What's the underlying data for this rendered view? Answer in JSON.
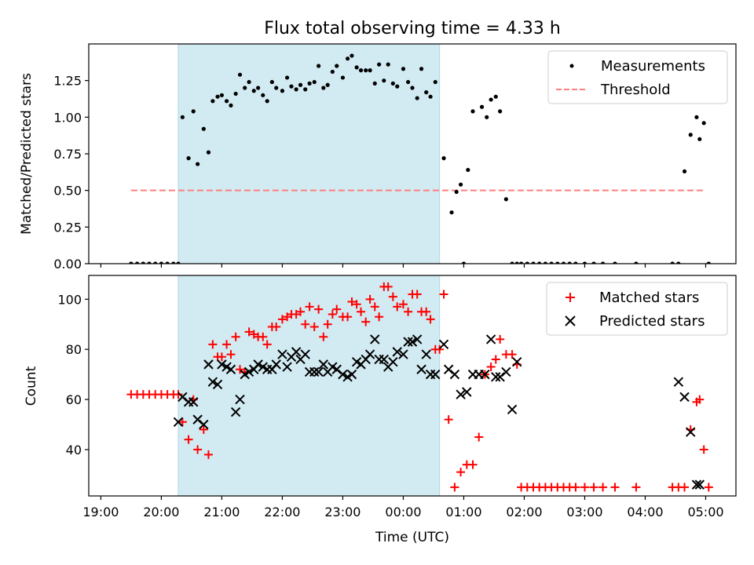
{
  "chart_data": [
    {
      "type": "scatter",
      "title": "Flux total observing time = 4.33 h",
      "xlabel": "",
      "ylabel": "Matched/Predicted stars",
      "xlim": [
        18.8,
        29.5
      ],
      "ylim": [
        0,
        1.5
      ],
      "yticks": [
        0.0,
        0.25,
        0.5,
        0.75,
        1.0,
        1.25
      ],
      "ytick_labels": [
        "0.00",
        "0.25",
        "0.50",
        "0.75",
        "1.00",
        "1.25"
      ],
      "shaded_span": [
        20.28,
        24.6
      ],
      "legend": [
        "Measurements",
        "Threshold"
      ],
      "legend_position": "top-right",
      "threshold": {
        "name": "Threshold",
        "y": 0.5,
        "x_range": [
          19.5,
          29.0
        ],
        "color": "#ff7f7f"
      },
      "series": [
        {
          "name": "Measurements",
          "color": "#000000",
          "x": [
            19.5,
            19.6,
            19.7,
            19.8,
            19.9,
            20.0,
            20.1,
            20.2,
            20.28,
            20.35,
            20.45,
            20.53,
            20.6,
            20.7,
            20.78,
            20.85,
            20.93,
            21.0,
            21.08,
            21.15,
            21.23,
            21.3,
            21.38,
            21.45,
            21.53,
            21.6,
            21.68,
            21.75,
            21.83,
            21.9,
            22.0,
            22.08,
            22.15,
            22.23,
            22.3,
            22.38,
            22.45,
            22.53,
            22.6,
            22.68,
            22.75,
            22.83,
            22.9,
            23.0,
            23.08,
            23.15,
            23.23,
            23.3,
            23.38,
            23.45,
            23.53,
            23.6,
            23.68,
            23.75,
            23.83,
            23.9,
            24.0,
            24.08,
            24.15,
            24.23,
            24.3,
            24.38,
            24.45,
            24.53,
            24.67,
            24.8,
            24.88,
            24.95,
            25.0,
            25.07,
            25.15,
            25.3,
            25.38,
            25.45,
            25.53,
            25.6,
            25.7,
            25.8,
            25.88,
            25.95,
            26.05,
            26.15,
            26.25,
            26.35,
            26.45,
            26.55,
            26.65,
            26.75,
            26.85,
            27.0,
            27.15,
            27.3,
            27.5,
            27.85,
            28.45,
            28.55,
            28.65,
            28.75,
            28.85,
            28.9,
            28.97,
            29.05
          ],
          "y": [
            0.0,
            0.0,
            0.0,
            0.0,
            0.0,
            0.0,
            0.0,
            0.0,
            0.0,
            1.0,
            0.72,
            1.04,
            0.68,
            0.92,
            0.76,
            1.11,
            1.14,
            1.15,
            1.11,
            1.08,
            1.16,
            1.29,
            1.2,
            1.24,
            1.18,
            1.2,
            1.15,
            1.11,
            1.24,
            1.2,
            1.18,
            1.27,
            1.21,
            1.19,
            1.22,
            1.19,
            1.23,
            1.24,
            1.35,
            1.2,
            1.22,
            1.31,
            1.35,
            1.27,
            1.4,
            1.42,
            1.34,
            1.32,
            1.32,
            1.32,
            1.23,
            1.36,
            1.25,
            1.36,
            1.23,
            1.21,
            1.33,
            1.24,
            1.2,
            1.13,
            1.33,
            1.17,
            1.14,
            1.24,
            0.72,
            0.35,
            0.49,
            0.54,
            0.0,
            0.64,
            1.04,
            1.07,
            1.0,
            1.12,
            1.14,
            1.04,
            0.44,
            0.0,
            0.0,
            0.0,
            0.0,
            0.0,
            0.0,
            0.0,
            0.0,
            0.0,
            0.0,
            0.0,
            0.0,
            0.0,
            0.0,
            0.0,
            0.0,
            0.0,
            0.0,
            0.0,
            0.63,
            0.88,
            1.0,
            0.85,
            0.96,
            0.0
          ]
        }
      ]
    },
    {
      "type": "scatter",
      "title": "",
      "xlabel": "Time (UTC)",
      "ylabel": "Count",
      "xlim": [
        18.8,
        29.5
      ],
      "ylim": [
        21.5,
        109.5
      ],
      "yticks": [
        40,
        60,
        80,
        100
      ],
      "ytick_labels": [
        "40",
        "60",
        "80",
        "100"
      ],
      "xticks": [
        19,
        20,
        21,
        22,
        23,
        24,
        25,
        26,
        27,
        28,
        29
      ],
      "xtick_labels": [
        "19:00",
        "20:00",
        "21:00",
        "22:00",
        "23:00",
        "00:00",
        "01:00",
        "02:00",
        "03:00",
        "04:00",
        "05:00"
      ],
      "shaded_span": [
        20.28,
        24.6
      ],
      "legend": [
        "Matched stars",
        "Predicted stars"
      ],
      "legend_position": "top-right",
      "series": [
        {
          "name": "Matched stars",
          "color": "#ff0000",
          "marker": "plus",
          "x": [
            19.5,
            19.6,
            19.7,
            19.8,
            19.9,
            20.0,
            20.1,
            20.2,
            20.28,
            20.35,
            20.45,
            20.53,
            20.6,
            20.7,
            20.78,
            20.85,
            20.93,
            21.0,
            21.08,
            21.15,
            21.23,
            21.3,
            21.38,
            21.45,
            21.53,
            21.6,
            21.68,
            21.75,
            21.83,
            21.9,
            22.0,
            22.08,
            22.15,
            22.23,
            22.3,
            22.38,
            22.45,
            22.53,
            22.6,
            22.68,
            22.75,
            22.83,
            22.9,
            23.0,
            23.08,
            23.15,
            23.23,
            23.3,
            23.38,
            23.45,
            23.53,
            23.6,
            23.68,
            23.75,
            23.83,
            23.9,
            24.0,
            24.08,
            24.15,
            24.23,
            24.3,
            24.38,
            24.45,
            24.53,
            24.6,
            24.67,
            24.75,
            24.85,
            24.95,
            25.05,
            25.15,
            25.25,
            25.35,
            25.45,
            25.53,
            25.6,
            25.7,
            25.8,
            25.88,
            25.95,
            26.05,
            26.15,
            26.25,
            26.35,
            26.45,
            26.55,
            26.65,
            26.75,
            26.85,
            27.0,
            27.15,
            27.3,
            27.5,
            27.85,
            28.45,
            28.55,
            28.65,
            28.75,
            28.85,
            28.9,
            28.97,
            29.05
          ],
          "y": [
            62,
            62,
            62,
            62,
            62,
            62,
            62,
            62,
            62,
            51,
            44,
            60,
            40,
            48,
            38,
            82,
            77,
            77,
            82,
            78,
            85,
            72,
            71,
            87,
            86,
            85,
            85,
            82,
            89,
            89,
            92,
            93,
            94,
            94,
            95,
            90,
            97,
            89,
            96,
            85,
            90,
            94,
            96,
            93,
            93,
            99,
            98,
            95,
            91,
            100,
            97,
            93,
            105,
            105,
            101,
            97,
            98,
            95,
            102,
            102,
            95,
            95,
            92,
            80,
            80,
            102,
            52,
            25,
            31,
            34,
            34,
            45,
            70,
            73,
            76,
            84,
            78,
            78,
            74,
            25,
            25,
            25,
            25,
            25,
            25,
            25,
            25,
            25,
            25,
            25,
            25,
            25,
            25,
            25,
            25,
            25,
            25,
            48,
            59,
            60,
            40,
            25
          ]
        },
        {
          "name": "Predicted stars",
          "color": "#000000",
          "marker": "x",
          "x": [
            20.28,
            20.35,
            20.45,
            20.53,
            20.6,
            20.7,
            20.78,
            20.85,
            20.93,
            21.0,
            21.08,
            21.15,
            21.23,
            21.3,
            21.38,
            21.45,
            21.53,
            21.6,
            21.68,
            21.75,
            21.83,
            21.9,
            22.0,
            22.08,
            22.15,
            22.23,
            22.3,
            22.38,
            22.45,
            22.53,
            22.6,
            22.68,
            22.75,
            22.83,
            22.9,
            23.0,
            23.08,
            23.15,
            23.23,
            23.3,
            23.38,
            23.45,
            23.53,
            23.6,
            23.68,
            23.75,
            23.83,
            23.9,
            24.0,
            24.08,
            24.15,
            24.23,
            24.3,
            24.38,
            24.45,
            24.53,
            24.67,
            24.75,
            24.85,
            24.95,
            25.05,
            25.15,
            25.25,
            25.35,
            25.45,
            25.53,
            25.6,
            25.7,
            25.8,
            25.88,
            28.55,
            28.65,
            28.75,
            28.85,
            28.9
          ],
          "y": [
            51,
            61,
            59,
            59,
            52,
            50,
            74,
            67,
            66,
            74,
            73,
            72,
            55,
            60,
            70,
            71,
            72,
            74,
            73,
            72,
            72,
            74,
            78,
            73,
            77,
            79,
            76,
            78,
            71,
            71,
            71,
            74,
            71,
            73,
            72,
            70,
            69,
            70,
            75,
            74,
            76,
            78,
            84,
            76,
            76,
            73,
            75,
            79,
            78,
            83,
            83,
            84,
            72,
            78,
            70,
            70,
            82,
            72,
            70,
            62,
            63,
            70,
            70,
            70,
            84,
            69,
            69,
            71,
            56,
            75,
            67,
            61,
            47,
            26,
            26
          ]
        }
      ]
    }
  ]
}
